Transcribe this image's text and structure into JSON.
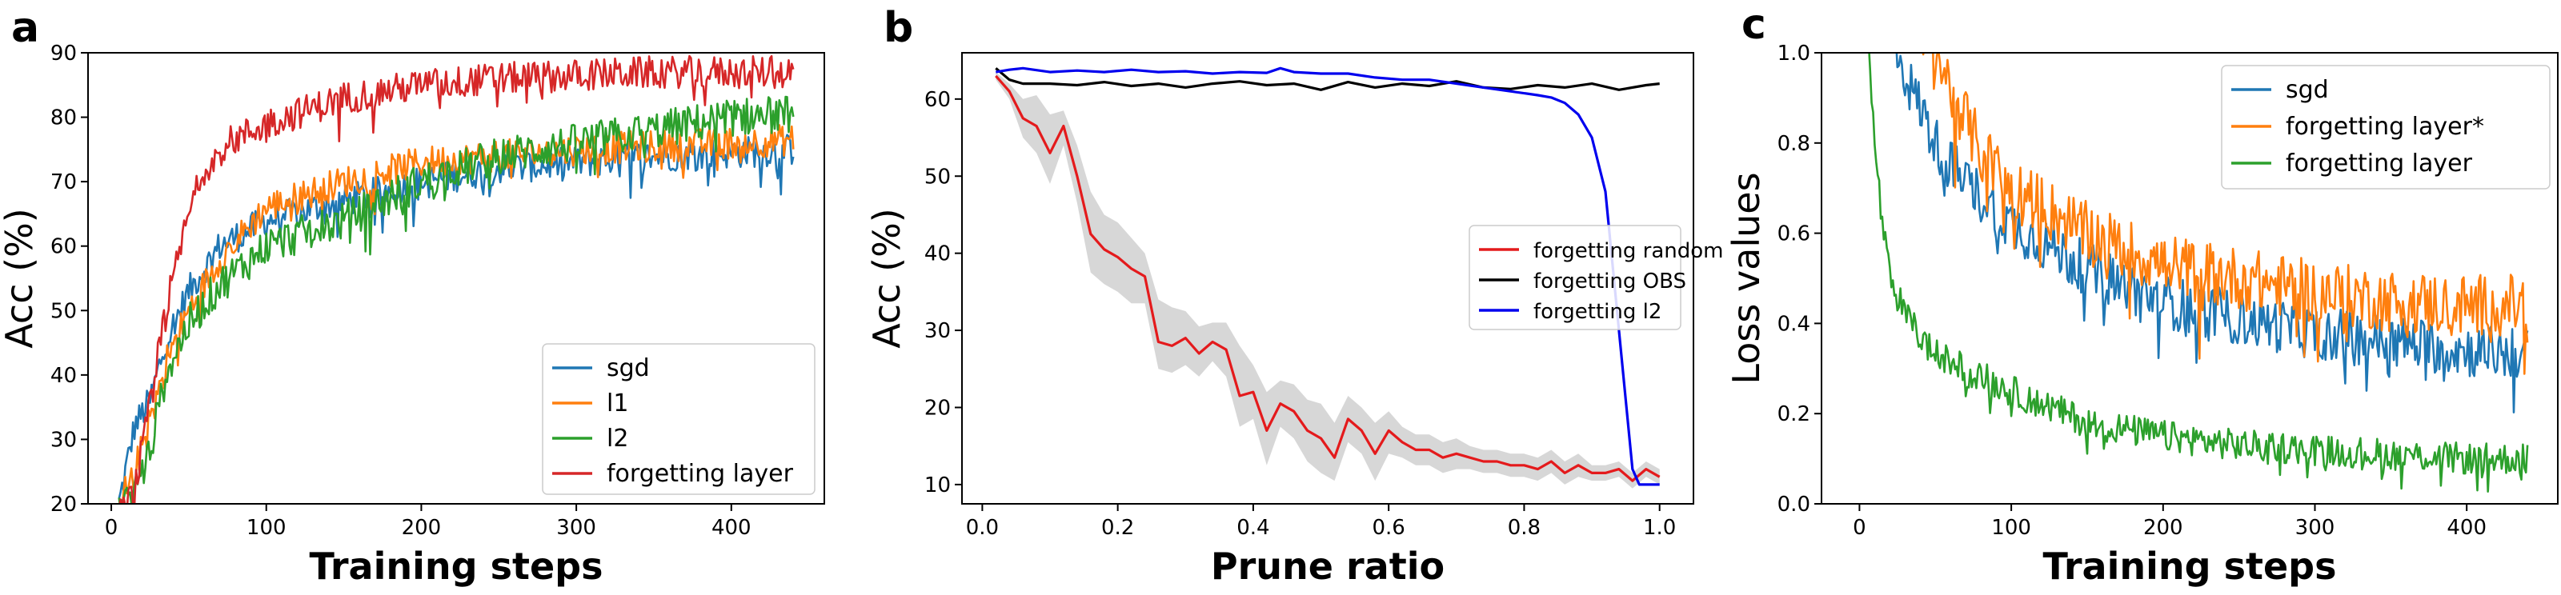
{
  "figure": {
    "panels": [
      "a",
      "b",
      "c"
    ]
  },
  "chart_data": [
    {
      "id": "a",
      "type": "line",
      "title": "",
      "xlabel": "Training steps",
      "ylabel": "Acc (%)",
      "xlim": [
        -15,
        460
      ],
      "ylim": [
        20,
        90
      ],
      "xticks": [
        0,
        100,
        200,
        300,
        400
      ],
      "yticks": [
        20,
        30,
        40,
        50,
        60,
        70,
        80,
        90
      ],
      "grid": false,
      "legend_position": "bottom-right",
      "series": [
        {
          "name": "sgd",
          "color": "#1f77b4",
          "x": [
            5,
            15,
            25,
            35,
            50,
            70,
            100,
            150,
            200,
            250,
            300,
            350,
            400,
            440
          ],
          "y": [
            20,
            32,
            36,
            45,
            53,
            60,
            64,
            67,
            70,
            72,
            73,
            74,
            74.5,
            75
          ],
          "noise": 2.5
        },
        {
          "name": "l1",
          "color": "#ff7f0e",
          "x": [
            5,
            15,
            25,
            35,
            50,
            70,
            100,
            150,
            200,
            250,
            300,
            350,
            400,
            440
          ],
          "y": [
            20,
            25,
            33,
            42,
            50,
            58,
            66,
            70,
            73,
            74,
            75,
            75.5,
            76,
            76.5
          ],
          "noise": 2.5
        },
        {
          "name": "l2",
          "color": "#2ca02c",
          "x": [
            5,
            15,
            25,
            35,
            50,
            70,
            100,
            150,
            200,
            250,
            300,
            350,
            400,
            440
          ],
          "y": [
            20,
            22,
            28,
            40,
            48,
            54,
            60,
            64,
            70,
            74,
            76,
            78,
            80,
            80.5
          ],
          "noise": 3
        },
        {
          "name": "forgetting layer",
          "color": "#d62728",
          "x": [
            5,
            15,
            25,
            35,
            50,
            60,
            75,
            100,
            150,
            200,
            250,
            300,
            350,
            400,
            440
          ],
          "y": [
            18,
            22,
            35,
            50,
            65,
            72,
            76,
            79,
            83,
            85,
            86,
            86.5,
            87,
            87,
            87
          ],
          "noise": 2.5
        }
      ]
    },
    {
      "id": "b",
      "type": "line",
      "title": "",
      "xlabel": "Prune ratio",
      "ylabel": "Acc (%)",
      "xlim": [
        -0.03,
        1.05
      ],
      "ylim": [
        7.5,
        66
      ],
      "xticks": [
        0.0,
        0.2,
        0.4,
        0.6,
        0.8,
        1.0
      ],
      "xtick_labels": [
        "0.0",
        "0.2",
        "0.4",
        "0.6",
        "0.8",
        "1.0"
      ],
      "yticks": [
        10,
        20,
        30,
        40,
        50,
        60
      ],
      "grid": false,
      "legend_position": "center-right",
      "series": [
        {
          "name": "forgetting random",
          "color": "#e41a1c",
          "x": [
            0.02,
            0.04,
            0.06,
            0.08,
            0.1,
            0.12,
            0.14,
            0.16,
            0.18,
            0.2,
            0.22,
            0.24,
            0.26,
            0.28,
            0.3,
            0.32,
            0.34,
            0.36,
            0.38,
            0.4,
            0.42,
            0.44,
            0.46,
            0.48,
            0.5,
            0.52,
            0.54,
            0.56,
            0.58,
            0.6,
            0.62,
            0.64,
            0.66,
            0.68,
            0.7,
            0.72,
            0.74,
            0.76,
            0.78,
            0.8,
            0.82,
            0.84,
            0.86,
            0.88,
            0.9,
            0.92,
            0.94,
            0.96,
            0.98,
            1.0
          ],
          "y": [
            63,
            61,
            57.5,
            56.5,
            53,
            56.5,
            50,
            42.5,
            40.5,
            39.5,
            38,
            37,
            28.5,
            28,
            29,
            27,
            28.5,
            27.5,
            21.5,
            22,
            17,
            20.5,
            19.5,
            17,
            16,
            13.5,
            18.5,
            17,
            14,
            17,
            15.5,
            14.5,
            14.5,
            13.5,
            14,
            13.5,
            13,
            13,
            12.5,
            12.5,
            12,
            13,
            11.5,
            12.5,
            11.5,
            11.5,
            12,
            10.5,
            12,
            11
          ],
          "band_upper": [
            63.5,
            62,
            60,
            60.5,
            58,
            58.5,
            54,
            48,
            45,
            44,
            42,
            40,
            34,
            33,
            32.5,
            30.5,
            31,
            31,
            28,
            25.5,
            22,
            23.5,
            23,
            21,
            20.5,
            18,
            21.5,
            20,
            18,
            19.5,
            17.5,
            16.5,
            16.5,
            15.5,
            16,
            15,
            14.5,
            14.5,
            14,
            14,
            13.5,
            14.5,
            13,
            14,
            12.5,
            12.5,
            13,
            11.5,
            13,
            12
          ],
          "band_lower": [
            62.5,
            60,
            55,
            53,
            49,
            54,
            46.5,
            37.5,
            36,
            35,
            33.5,
            33.5,
            25,
            24.5,
            25.5,
            24,
            26,
            24,
            17.5,
            18.5,
            12.5,
            17.5,
            16,
            13,
            11.5,
            10.5,
            15.5,
            14,
            10.5,
            14,
            13.5,
            12.5,
            12.5,
            11.5,
            12,
            12,
            11.5,
            11.5,
            11,
            11,
            10.5,
            11.5,
            10,
            11,
            10.5,
            10.5,
            11,
            9.5,
            11,
            10
          ]
        },
        {
          "name": "forgetting OBS",
          "color": "#000000",
          "x": [
            0.02,
            0.04,
            0.06,
            0.1,
            0.14,
            0.18,
            0.22,
            0.26,
            0.3,
            0.34,
            0.38,
            0.42,
            0.46,
            0.5,
            0.54,
            0.58,
            0.62,
            0.66,
            0.7,
            0.74,
            0.78,
            0.82,
            0.86,
            0.9,
            0.94,
            0.98,
            1.0
          ],
          "y": [
            64,
            62.5,
            62,
            62,
            61.8,
            62.2,
            61.7,
            62,
            61.5,
            62,
            62.3,
            61.8,
            62,
            61.2,
            62.2,
            61.5,
            62,
            61.7,
            62.3,
            61.5,
            61.3,
            61.8,
            61.5,
            62,
            61.2,
            61.8,
            62
          ]
        },
        {
          "name": "forgetting l2",
          "color": "#0000ee",
          "x": [
            0.02,
            0.04,
            0.06,
            0.1,
            0.14,
            0.18,
            0.22,
            0.26,
            0.3,
            0.34,
            0.38,
            0.42,
            0.44,
            0.46,
            0.5,
            0.54,
            0.58,
            0.62,
            0.66,
            0.7,
            0.74,
            0.78,
            0.82,
            0.84,
            0.86,
            0.88,
            0.9,
            0.92,
            0.94,
            0.96,
            0.97,
            0.98,
            0.99,
            1.0
          ],
          "y": [
            63.5,
            63.8,
            64,
            63.5,
            63.7,
            63.5,
            63.8,
            63.5,
            63.6,
            63.3,
            63.5,
            63.4,
            64,
            63.5,
            63.3,
            63.3,
            62.8,
            62.5,
            62.5,
            62,
            61.5,
            61,
            60.5,
            60.2,
            59.5,
            58,
            55,
            48,
            30,
            12,
            10,
            10,
            10,
            10
          ]
        }
      ]
    },
    {
      "id": "c",
      "type": "line",
      "title": "",
      "xlabel": "Training steps",
      "ylabel": "Loss values",
      "xlim": [
        -25,
        460
      ],
      "ylim": [
        0.0,
        1.0
      ],
      "xticks": [
        0,
        100,
        200,
        300,
        400
      ],
      "yticks": [
        0.0,
        0.2,
        0.4,
        0.6,
        0.8,
        1.0
      ],
      "ytick_labels": [
        "0.0",
        "0.2",
        "0.4",
        "0.6",
        "0.8",
        "1.0"
      ],
      "grid": false,
      "legend_position": "top-right",
      "series": [
        {
          "name": "sgd",
          "color": "#1f77b4",
          "x": [
            20,
            30,
            40,
            50,
            60,
            80,
            100,
            150,
            200,
            250,
            300,
            350,
            400,
            440
          ],
          "y": [
            1.05,
            0.95,
            0.88,
            0.8,
            0.75,
            0.68,
            0.62,
            0.52,
            0.45,
            0.41,
            0.38,
            0.36,
            0.34,
            0.33
          ],
          "noise": 0.06
        },
        {
          "name": "forgetting layer*",
          "color": "#ff7f0e",
          "x": [
            40,
            50,
            60,
            70,
            80,
            100,
            150,
            200,
            250,
            300,
            350,
            400,
            440
          ],
          "y": [
            1.05,
            1.0,
            0.92,
            0.85,
            0.78,
            0.7,
            0.6,
            0.53,
            0.5,
            0.47,
            0.45,
            0.44,
            0.44
          ],
          "noise": 0.07
        },
        {
          "name": "forgetting layer",
          "color": "#2ca02c",
          "x": [
            5,
            10,
            15,
            20,
            30,
            40,
            50,
            70,
            100,
            150,
            200,
            250,
            300,
            350,
            400,
            440
          ],
          "y": [
            1.05,
            0.8,
            0.62,
            0.5,
            0.42,
            0.37,
            0.33,
            0.3,
            0.25,
            0.18,
            0.15,
            0.13,
            0.12,
            0.11,
            0.1,
            0.1
          ],
          "noise": 0.035
        }
      ]
    }
  ]
}
